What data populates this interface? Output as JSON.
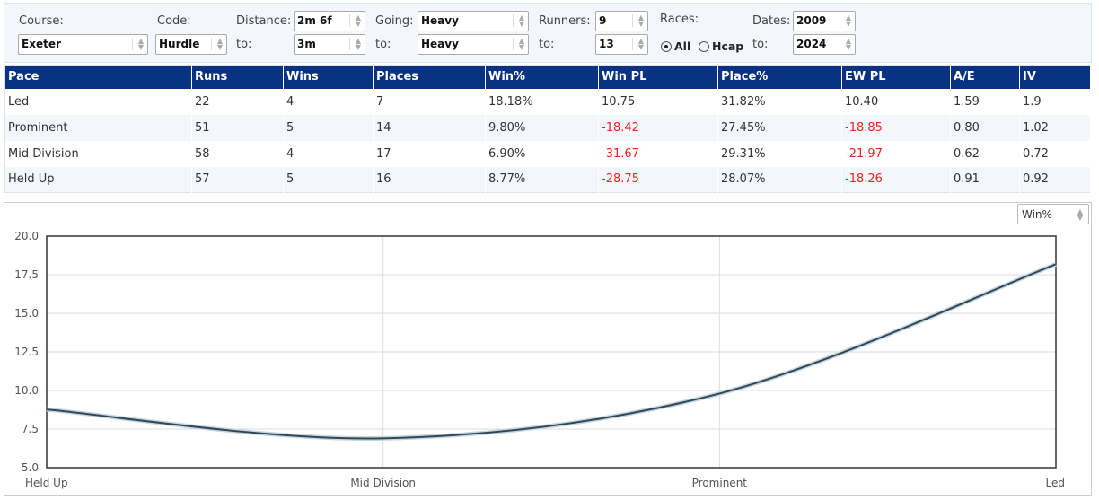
{
  "filters": {
    "course_label": "Course:",
    "course": "Exeter",
    "code_label": "Code:",
    "code": "Hurdle",
    "distance_label": "Distance:",
    "distance_from": "2m 6f",
    "to_label": "to:",
    "distance_to": "3m",
    "going_label": "Going:",
    "going_from": "Heavy",
    "going_to": "Heavy",
    "runners_label": "Runners:",
    "runners_from": "9",
    "runners_to": "13",
    "races_label": "Races:",
    "races_all": "All",
    "races_hcap": "Hcap",
    "dates_label": "Dates:",
    "dates_from": "2009",
    "dates_to": "2024"
  },
  "table": {
    "headers": [
      "Pace",
      "Runs",
      "Wins",
      "Places",
      "Win%",
      "Win PL",
      "Place%",
      "EW PL",
      "A/E",
      "IV"
    ],
    "rows": [
      [
        "Led",
        "22",
        "4",
        "7",
        "18.18%",
        "10.75",
        "31.82%",
        "10.40",
        "1.59",
        "1.9"
      ],
      [
        "Prominent",
        "51",
        "5",
        "14",
        "9.80%",
        "-18.42",
        "27.45%",
        "-18.85",
        "0.80",
        "1.02"
      ],
      [
        "Mid Division",
        "58",
        "4",
        "17",
        "6.90%",
        "-31.67",
        "29.31%",
        "-21.97",
        "0.62",
        "0.72"
      ],
      [
        "Held Up",
        "57",
        "5",
        "16",
        "8.77%",
        "-28.75",
        "28.07%",
        "-18.26",
        "0.91",
        "0.92"
      ]
    ]
  },
  "metric_select": "Win%",
  "chart_data": {
    "type": "line",
    "categories": [
      "Held Up",
      "Mid Division",
      "Prominent",
      "Led"
    ],
    "values": [
      8.77,
      6.9,
      9.8,
      18.18
    ],
    "ylim": [
      5,
      20
    ],
    "yticks": [
      "5.0",
      "7.5",
      "10.0",
      "12.5",
      "15.0",
      "17.5",
      "20.0"
    ],
    "line_color": "#2f4858",
    "grid": true
  }
}
